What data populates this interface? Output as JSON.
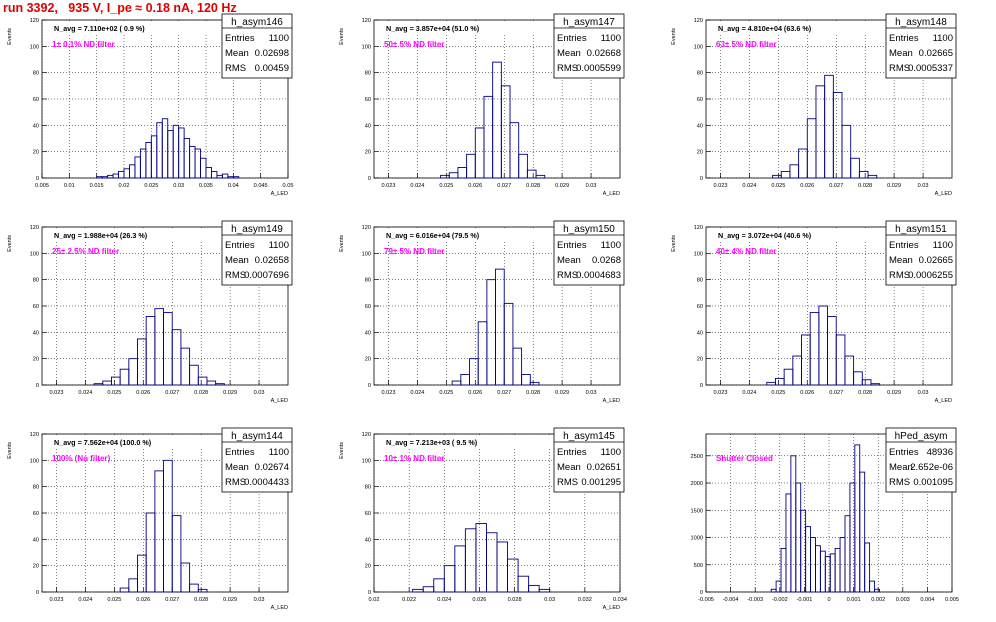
{
  "canvas_title": "run 3392,   935 V, I_pe ≈ 0.18 nA, 120 Hz",
  "colors": {
    "title": "#e00000",
    "histogram": "#000080",
    "annotation": "#ff00ff",
    "axis": "#000000"
  },
  "stats_labels": {
    "entries": "Entries",
    "mean": "Mean",
    "rms": "RMS"
  },
  "chart_data": [
    {
      "type": "histogram",
      "name": "h_asym146",
      "navg": "N_avg = 7.110e+02 ( 0.9 %)",
      "filter": "1± 0.1% ND filter",
      "entries": "1100",
      "mean": "0.02698",
      "rms": "0.00459",
      "ylabel": "Events",
      "xlabel": "A_LED",
      "xlim": [
        0.005,
        0.05
      ],
      "ylim": [
        0,
        120
      ],
      "xticks": [
        0.005,
        0.01,
        0.015,
        0.02,
        0.025,
        0.03,
        0.035,
        0.04,
        0.045,
        0.05
      ],
      "xticklabels": [
        "0.005",
        "0.01",
        "0.015",
        "0.02",
        "0.025",
        "0.03",
        "0.035",
        "0.04",
        "0.045",
        "0.05"
      ],
      "yticks": [
        0,
        20,
        40,
        60,
        80,
        100,
        120
      ],
      "yticklabels": [
        "0",
        "20",
        "40",
        "60",
        "80",
        "100",
        "120"
      ],
      "bins_x": [
        0.0155,
        0.0165,
        0.0175,
        0.0185,
        0.0195,
        0.0205,
        0.0215,
        0.0225,
        0.0235,
        0.0245,
        0.0255,
        0.0265,
        0.0275,
        0.0285,
        0.0295,
        0.0305,
        0.0315,
        0.0325,
        0.0335,
        0.0345,
        0.0355,
        0.0365,
        0.0375,
        0.0385,
        0.0395,
        0.0405
      ],
      "bins_y": [
        1,
        1,
        2,
        3,
        5,
        7,
        10,
        16,
        22,
        27,
        32,
        42,
        45,
        36,
        40,
        38,
        30,
        24,
        22,
        15,
        8,
        5,
        2,
        3,
        1,
        1
      ]
    },
    {
      "type": "histogram",
      "name": "h_asym147",
      "navg": "N_avg = 3.857e+04 (51.0 %)",
      "filter": "50± 5% ND filter",
      "entries": "1100",
      "mean": "0.02668",
      "rms": "0.0005599",
      "ylabel": "Events",
      "xlabel": "A_LED",
      "xlim": [
        0.0225,
        0.031
      ],
      "ylim": [
        0,
        120
      ],
      "xticks": [
        0.023,
        0.024,
        0.025,
        0.026,
        0.027,
        0.028,
        0.029,
        0.03
      ],
      "xticklabels": [
        "0.023",
        "0.024",
        "0.025",
        "0.026",
        "0.027",
        "0.028",
        "0.029",
        "0.03"
      ],
      "yticks": [
        0,
        20,
        40,
        60,
        80,
        100,
        120
      ],
      "yticklabels": [
        "0",
        "20",
        "40",
        "60",
        "80",
        "100",
        "120"
      ],
      "bins_x": [
        0.02495,
        0.02525,
        0.02555,
        0.02585,
        0.02615,
        0.02645,
        0.02675,
        0.02705,
        0.02735,
        0.02765,
        0.02795,
        0.02825
      ],
      "bins_y": [
        2,
        4,
        8,
        18,
        38,
        62,
        88,
        70,
        42,
        18,
        6,
        2
      ]
    },
    {
      "type": "histogram",
      "name": "h_asym148",
      "navg": "N_avg = 4.810e+04 (63.6 %)",
      "filter": "63± 5% ND filter",
      "entries": "1100",
      "mean": "0.02665",
      "rms": "0.0005337",
      "ylabel": "Events",
      "xlabel": "A_LED",
      "xlim": [
        0.0225,
        0.031
      ],
      "ylim": [
        0,
        120
      ],
      "xticks": [
        0.023,
        0.024,
        0.025,
        0.026,
        0.027,
        0.028,
        0.029,
        0.03
      ],
      "xticklabels": [
        "0.023",
        "0.024",
        "0.025",
        "0.026",
        "0.027",
        "0.028",
        "0.029",
        "0.03"
      ],
      "yticks": [
        0,
        20,
        40,
        60,
        80,
        100,
        120
      ],
      "yticklabels": [
        "0",
        "20",
        "40",
        "60",
        "80",
        "100",
        "120"
      ],
      "bins_x": [
        0.02495,
        0.02525,
        0.02555,
        0.02585,
        0.02615,
        0.02645,
        0.02675,
        0.02705,
        0.02735,
        0.02765,
        0.02795,
        0.02825
      ],
      "bins_y": [
        2,
        5,
        10,
        22,
        45,
        70,
        78,
        65,
        40,
        15,
        5,
        2
      ]
    },
    {
      "type": "histogram",
      "name": "h_asym149",
      "navg": "N_avg = 1.988e+04 (26.3 %)",
      "filter": "25± 2.5% ND filter",
      "entries": "1100",
      "mean": "0.02658",
      "rms": "0.0007696",
      "ylabel": "Events",
      "xlabel": "A_LED",
      "xlim": [
        0.0225,
        0.031
      ],
      "ylim": [
        0,
        120
      ],
      "xticks": [
        0.023,
        0.024,
        0.025,
        0.026,
        0.027,
        0.028,
        0.029,
        0.03
      ],
      "xticklabels": [
        "0.023",
        "0.024",
        "0.025",
        "0.026",
        "0.027",
        "0.028",
        "0.029",
        "0.03"
      ],
      "yticks": [
        0,
        20,
        40,
        60,
        80,
        100,
        120
      ],
      "yticklabels": [
        "0",
        "20",
        "40",
        "60",
        "80",
        "100",
        "120"
      ],
      "bins_x": [
        0.02445,
        0.02475,
        0.02505,
        0.02535,
        0.02565,
        0.02595,
        0.02625,
        0.02655,
        0.02685,
        0.02715,
        0.02745,
        0.02775,
        0.02805,
        0.02835,
        0.02865
      ],
      "bins_y": [
        1,
        3,
        6,
        12,
        20,
        35,
        52,
        58,
        55,
        42,
        28,
        15,
        6,
        3,
        1
      ]
    },
    {
      "type": "histogram",
      "name": "h_asym150",
      "navg": "N_avg = 6.016e+04 (79.5 %)",
      "filter": "79± 5% ND filter",
      "entries": "1100",
      "mean": "0.0268",
      "rms": "0.0004683",
      "ylabel": "Events",
      "xlabel": "A_LED",
      "xlim": [
        0.0225,
        0.031
      ],
      "ylim": [
        0,
        120
      ],
      "xticks": [
        0.023,
        0.024,
        0.025,
        0.026,
        0.027,
        0.028,
        0.029,
        0.03
      ],
      "xticklabels": [
        "0.023",
        "0.024",
        "0.025",
        "0.026",
        "0.027",
        "0.028",
        "0.029",
        "0.03"
      ],
      "yticks": [
        0,
        20,
        40,
        60,
        80,
        100,
        120
      ],
      "yticklabels": [
        "0",
        "20",
        "40",
        "60",
        "80",
        "100",
        "120"
      ],
      "bins_x": [
        0.02535,
        0.02565,
        0.02595,
        0.02625,
        0.02655,
        0.02685,
        0.02715,
        0.02745,
        0.02775,
        0.02805
      ],
      "bins_y": [
        3,
        8,
        20,
        48,
        80,
        88,
        62,
        28,
        8,
        2
      ]
    },
    {
      "type": "histogram",
      "name": "h_asym151",
      "navg": "N_avg = 3.072e+04 (40.6 %)",
      "filter": "40± 4% ND filter",
      "entries": "1100",
      "mean": "0.02665",
      "rms": "0.0006255",
      "ylabel": "Events",
      "xlabel": "A_LED",
      "xlim": [
        0.0225,
        0.031
      ],
      "ylim": [
        0,
        120
      ],
      "xticks": [
        0.023,
        0.024,
        0.025,
        0.026,
        0.027,
        0.028,
        0.029,
        0.03
      ],
      "xticklabels": [
        "0.023",
        "0.024",
        "0.025",
        "0.026",
        "0.027",
        "0.028",
        "0.029",
        "0.03"
      ],
      "yticks": [
        0,
        20,
        40,
        60,
        80,
        100,
        120
      ],
      "yticklabels": [
        "0",
        "20",
        "40",
        "60",
        "80",
        "100",
        "120"
      ],
      "bins_x": [
        0.02475,
        0.02505,
        0.02535,
        0.02565,
        0.02595,
        0.02625,
        0.02655,
        0.02685,
        0.02715,
        0.02745,
        0.02775,
        0.02805,
        0.02835
      ],
      "bins_y": [
        2,
        5,
        12,
        22,
        38,
        55,
        60,
        52,
        38,
        22,
        10,
        4,
        1
      ]
    },
    {
      "type": "histogram",
      "name": "h_asym144",
      "navg": "N_avg = 7.562e+04 (100.0 %)",
      "filter": "100% (No filter)",
      "entries": "1100",
      "mean": "0.02674",
      "rms": "0.0004433",
      "ylabel": "Events",
      "xlabel": "A_LED",
      "xlim": [
        0.0225,
        0.031
      ],
      "ylim": [
        0,
        120
      ],
      "xticks": [
        0.023,
        0.024,
        0.025,
        0.026,
        0.027,
        0.028,
        0.029,
        0.03
      ],
      "xticklabels": [
        "0.023",
        "0.024",
        "0.025",
        "0.026",
        "0.027",
        "0.028",
        "0.029",
        "0.03"
      ],
      "yticks": [
        0,
        20,
        40,
        60,
        80,
        100,
        120
      ],
      "yticklabels": [
        "0",
        "20",
        "40",
        "60",
        "80",
        "100",
        "120"
      ],
      "bins_x": [
        0.02535,
        0.02565,
        0.02595,
        0.02625,
        0.02655,
        0.02685,
        0.02715,
        0.02745,
        0.02775,
        0.02805
      ],
      "bins_y": [
        3,
        10,
        28,
        60,
        92,
        100,
        58,
        22,
        6,
        2
      ]
    },
    {
      "type": "histogram",
      "name": "h_asym145",
      "navg": "N_avg = 7.213e+03 ( 9.5 %)",
      "filter": "10± 1% ND filter",
      "entries": "1100",
      "mean": "0.02651",
      "rms": "0.001295",
      "ylabel": "Events",
      "xlabel": "A_LED",
      "xlim": [
        0.02,
        0.034
      ],
      "ylim": [
        0,
        120
      ],
      "xticks": [
        0.02,
        0.022,
        0.024,
        0.026,
        0.028,
        0.03,
        0.032,
        0.034
      ],
      "xticklabels": [
        "0.02",
        "0.022",
        "0.024",
        "0.026",
        "0.028",
        "0.03",
        "0.032",
        "0.034"
      ],
      "yticks": [
        0,
        20,
        40,
        60,
        80,
        100,
        120
      ],
      "yticklabels": [
        "0",
        "20",
        "40",
        "60",
        "80",
        "100",
        "120"
      ],
      "bins_x": [
        0.0225,
        0.0231,
        0.0237,
        0.0243,
        0.0249,
        0.0255,
        0.0261,
        0.0267,
        0.0273,
        0.0279,
        0.0285,
        0.0291,
        0.0297
      ],
      "bins_y": [
        2,
        4,
        10,
        20,
        35,
        48,
        52,
        45,
        38,
        25,
        12,
        5,
        2
      ]
    },
    {
      "type": "histogram",
      "name": "hPed_asym",
      "navg": "",
      "filter": "Shutter Closed",
      "entries": "48936",
      "mean": "2.652e-06",
      "rms": "0.001095",
      "ylabel": "",
      "xlabel": "",
      "xlim": [
        -0.005,
        0.005
      ],
      "ylim": [
        0,
        2900
      ],
      "xticks": [
        -0.005,
        -0.004,
        -0.003,
        -0.002,
        -0.001,
        0,
        0.001,
        0.002,
        0.003,
        0.004,
        0.005
      ],
      "xticklabels": [
        "-0.005",
        "-0.004",
        "-0.003",
        "-0.002",
        "-0.001",
        "0",
        "0.001",
        "0.002",
        "0.003",
        "0.004",
        "0.005"
      ],
      "yticks": [
        0,
        500,
        1000,
        1500,
        2000,
        2500
      ],
      "yticklabels": [
        "0",
        "500",
        "1000",
        "1500",
        "2000",
        "2500"
      ],
      "bins_x": [
        -0.00225,
        -0.00205,
        -0.00185,
        -0.00165,
        -0.00145,
        -0.00125,
        -0.00105,
        -0.00085,
        -0.00065,
        -0.00045,
        -0.00025,
        -5e-05,
        0.00015,
        0.00035,
        0.00055,
        0.00075,
        0.00095,
        0.00115,
        0.00135,
        0.00155,
        0.00175,
        0.00195
      ],
      "bins_y": [
        50,
        200,
        800,
        1800,
        2500,
        2000,
        1500,
        1200,
        1000,
        850,
        750,
        650,
        700,
        800,
        1000,
        1400,
        2000,
        2700,
        2200,
        900,
        200,
        50
      ]
    }
  ]
}
